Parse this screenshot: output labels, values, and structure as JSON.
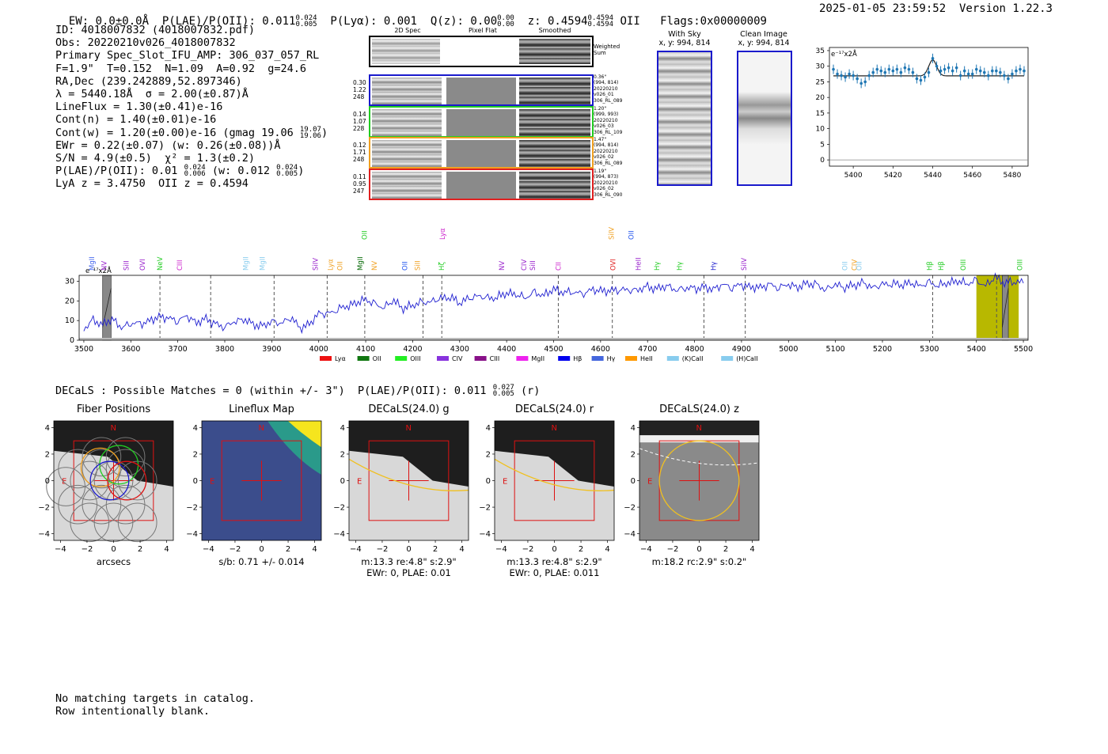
{
  "header": {
    "ew": "EW: 0.0±0.0Å",
    "plae_label": "P(LAE)/P(OII): 0.011",
    "plae_hi": "0.024",
    "plae_lo": "0.005",
    "plya": "P(Lyα): 0.001",
    "qz_label": "Q(z): 0.00",
    "qz_hi": "0.00",
    "qz_lo": "0.00",
    "z_label": "z: 0.4594",
    "z_hi": "0.4594",
    "z_lo": "0.4594",
    "z_tag": "OII",
    "flags": "Flags:0x00000009",
    "timestamp": "2025-01-05 23:59:52  Version 1.22.3"
  },
  "info": {
    "line1": "ID: 4018007832 (4018007832.pdf)",
    "line2": "Obs: 20220210v026_4018007832",
    "line3": "Primary Spec_Slot_IFU_AMP: 306_037_057_RL",
    "line4": "F=1.9\"  T=0.152  N=1.09  A=0.92  g=24.6",
    "line5": "RA,Dec (239.242889,52.897346)",
    "line6": "λ = 5440.18Å  σ = 2.00(±0.87)Å",
    "line7": "LineFlux = 1.30(±0.41)e-16",
    "line8": "Cont(n) = 1.40(±0.01)e-16",
    "line9a": "Cont(w) = 1.20(±0.00)e-16 (gmag 19.06",
    "line9_hi": "19.07",
    "line9_lo": "19.06",
    "line9b": ")",
    "line10": "EWr = 0.22(±0.07) (w: 0.26(±0.08))Å",
    "line11": "S/N = 4.9(±0.5)  χ² = 1.3(±0.2)",
    "line12a": "P(LAE)/P(OII): 0.01",
    "line12_hi": "0.024",
    "line12_lo": "0.006",
    "line12b": "(w: 0.012",
    "line12_hi2": "0.024",
    "line12_lo2": "0.005",
    "line12c": ")",
    "line13": "LyA z = 3.4750  OII z = 0.4594"
  },
  "cutouts": {
    "col_titles": [
      "2D Spec",
      "Pixel Flat",
      "Smoothed"
    ],
    "weighted_sum": "Weighted Sum",
    "rows": [
      {
        "color": "#1a1acc",
        "left": [
          "0.30",
          "1.22",
          "248"
        ],
        "right": [
          "0.36\"",
          "(994, 814)",
          "20220210",
          "v026_01",
          "306_RL_089"
        ]
      },
      {
        "color": "#22cc22",
        "left": [
          "0.14",
          "1.07",
          "228"
        ],
        "right": [
          "1.20\"",
          "(999, 993)",
          "20220210",
          "v026_03",
          "306_RL_109"
        ]
      },
      {
        "color": "#f0a020",
        "left": [
          "0.12",
          "1.71",
          "248"
        ],
        "right": [
          "1.47\"",
          "(994, 814)",
          "20220210",
          "v026_02",
          "306_RL_089"
        ]
      },
      {
        "color": "#e02020",
        "left": [
          "0.11",
          "0.95",
          "247"
        ],
        "right": [
          "1.19\"",
          "(994, 873)",
          "20220210",
          "v026_02",
          "306_RL_090"
        ]
      }
    ]
  },
  "sky": {
    "with_sky_title": "With Sky",
    "with_sky_sub": "x, y: 994, 814",
    "clean_title": "Clean Image",
    "clean_sub": "x, y: 994, 814"
  },
  "colors": {
    "spectrum": "#1f1fd0",
    "fit": "#222222",
    "points": "#1f77b4",
    "olive": "#b8b800"
  },
  "zoom_chart": {
    "unit_label": "e⁻¹⁷x2Å",
    "xticks": [
      5400,
      5420,
      5440,
      5460,
      5480
    ],
    "yticks": [
      0,
      5,
      10,
      15,
      20,
      25,
      30,
      35
    ]
  },
  "full_spectrum": {
    "unit_label": "e⁻¹⁷x2Å",
    "xticks": [
      3500,
      3600,
      3700,
      3800,
      3900,
      4000,
      4100,
      4200,
      4300,
      4400,
      4500,
      4600,
      4700,
      4800,
      4900,
      5000,
      5100,
      5200,
      5300,
      5400,
      5500
    ],
    "yticks": [
      0,
      10,
      20,
      30
    ],
    "lines_top": [
      {
        "label": "OII",
        "x": 4097,
        "color": "#22cc22"
      },
      {
        "label": "Lyα",
        "x": 4263,
        "color": "#cc22cc"
      },
      {
        "label": "SiIV",
        "x": 4623,
        "color": "#f0a020"
      },
      {
        "label": "OII",
        "x": 4665,
        "color": "#2255ee"
      }
    ],
    "lines_low": [
      {
        "label": "MgII",
        "x": 3517,
        "color": "#4466ee"
      },
      {
        "label": "NV",
        "x": 3543,
        "color": "#9922cc"
      },
      {
        "label": "SiII",
        "x": 3590,
        "color": "#9922cc"
      },
      {
        "label": "OVI",
        "x": 3625,
        "color": "#9922cc"
      },
      {
        "label": "NeV",
        "x": 3662,
        "color": "#22cc22"
      },
      {
        "label": "CIII",
        "x": 3704,
        "color": "#cc22cc"
      },
      {
        "label": "MgII",
        "x": 3845,
        "color": "#88ccee"
      },
      {
        "label": "MgII",
        "x": 3880,
        "color": "#88ccee"
      },
      {
        "label": "SiIV",
        "x": 3993,
        "color": "#9922cc"
      },
      {
        "label": "Lyα",
        "x": 4025,
        "color": "#f0a020"
      },
      {
        "label": "OII",
        "x": 4045,
        "color": "#f0a020"
      },
      {
        "label": "MgII",
        "x": 4088,
        "color": "#006600"
      },
      {
        "label": "NV",
        "x": 4118,
        "color": "#f0a020"
      },
      {
        "label": "OII",
        "x": 4183,
        "color": "#2255ee"
      },
      {
        "label": "SiII",
        "x": 4210,
        "color": "#f0a020"
      },
      {
        "label": "Hζ",
        "x": 4262,
        "color": "#22cc22"
      },
      {
        "label": "NV",
        "x": 4390,
        "color": "#9922cc"
      },
      {
        "label": "CIV",
        "x": 4437,
        "color": "#9922cc"
      },
      {
        "label": "SiII",
        "x": 4455,
        "color": "#9922cc"
      },
      {
        "label": "CII",
        "x": 4510,
        "color": "#cc22cc"
      },
      {
        "label": "OVI",
        "x": 4626,
        "color": "#e02020"
      },
      {
        "label": "HeII",
        "x": 4680,
        "color": "#9922cc"
      },
      {
        "label": "Hγ",
        "x": 4720,
        "color": "#22cc22"
      },
      {
        "label": "Hγ",
        "x": 4768,
        "color": "#22cc22"
      },
      {
        "label": "Hγ",
        "x": 4840,
        "color": "#1a1acc"
      },
      {
        "label": "SiIV",
        "x": 4905,
        "color": "#9922cc"
      },
      {
        "label": "OII",
        "x": 5120,
        "color": "#88ccee"
      },
      {
        "label": "CIV",
        "x": 5140,
        "color": "#f0a020"
      },
      {
        "label": "OII",
        "x": 5150,
        "color": "#88ccee"
      },
      {
        "label": "Hβ",
        "x": 5300,
        "color": "#22cc22"
      },
      {
        "label": "Hβ",
        "x": 5325,
        "color": "#22cc22"
      },
      {
        "label": "OIII",
        "x": 5372,
        "color": "#22cc22"
      },
      {
        "label": "OIII",
        "x": 5492,
        "color": "#22cc22"
      }
    ],
    "legend": [
      {
        "label": "Lyα",
        "color": "#ee1111"
      },
      {
        "label": "OII",
        "color": "#117711"
      },
      {
        "label": "OIII",
        "color": "#22ee22"
      },
      {
        "label": "CIV",
        "color": "#8833dd"
      },
      {
        "label": "CIII",
        "color": "#881188"
      },
      {
        "label": "MgII",
        "color": "#ee22ee"
      },
      {
        "label": "Hβ",
        "color": "#0000ee"
      },
      {
        "label": "Hγ",
        "color": "#4466dd"
      },
      {
        "label": "HeII",
        "color": "#ff9900"
      },
      {
        "label": "(K)CaII",
        "color": "#88ccee"
      },
      {
        "label": "(H)CaII",
        "color": "#88ccee"
      }
    ]
  },
  "decals": {
    "header_a": "DECaLS : Possible Matches = 0 (within +/- 3\")  P(LAE)/P(OII): 0.011",
    "header_hi": "0.027",
    "header_lo": "0.005",
    "header_b": "(r)",
    "panels": [
      {
        "title": "Fiber Positions",
        "cap1": "arcsecs",
        "cap2": ""
      },
      {
        "title": "Lineflux Map",
        "cap1": "s/b: 0.71 +/- 0.014",
        "cap2": ""
      },
      {
        "title": "DECaLS(24.0) g",
        "cap1": "m:13.3  re:4.8\"  s:2.9\"",
        "cap2": "EWr: 0, PLAE: 0.01"
      },
      {
        "title": "DECaLS(24.0) r",
        "cap1": "m:13.3  re:4.8\"  s:2.9\"",
        "cap2": "EWr: 0, PLAE: 0.011"
      },
      {
        "title": "DECaLS(24.0) z",
        "cap1": "m:18.2 rc:2.9\"  s:0.2\"",
        "cap2": ""
      }
    ],
    "axis_ticks": [
      -4,
      -2,
      0,
      2,
      4
    ],
    "compass_n": "N",
    "compass_e": "E"
  },
  "footer": {
    "line1": "No matching targets in catalog.",
    "line2": "Row intentionally blank."
  },
  "chart_data": [
    {
      "type": "scatter",
      "title": "",
      "xlabel": "",
      "ylabel": "e⁻¹⁷x2Å",
      "xlim": [
        5388,
        5488
      ],
      "ylim": [
        -2,
        36
      ],
      "series": [
        {
          "x": [
            5390,
            5392,
            5394,
            5396,
            5398,
            5400,
            5402,
            5404,
            5406,
            5408,
            5410,
            5412,
            5414,
            5416,
            5418,
            5420,
            5422,
            5424,
            5426,
            5428,
            5430,
            5432,
            5434,
            5436,
            5438,
            5440,
            5442,
            5444,
            5446,
            5448,
            5450,
            5452,
            5454,
            5456,
            5458,
            5460,
            5462,
            5464,
            5466,
            5468,
            5470,
            5472,
            5474,
            5476,
            5478,
            5480,
            5482,
            5484,
            5486
          ],
          "y": [
            29,
            27.5,
            27,
            26.5,
            27.5,
            27,
            26,
            24.5,
            25,
            27,
            28,
            29,
            28.5,
            28,
            29,
            28.5,
            29,
            28,
            29.5,
            29,
            28,
            26,
            25.5,
            26.5,
            28,
            32.5,
            30,
            28.5,
            29,
            29.5,
            28.5,
            29.5,
            27,
            28.5,
            27.5,
            27.5,
            29,
            28.5,
            28,
            27,
            28.5,
            28.5,
            28,
            27,
            26,
            27.5,
            28.5,
            29,
            28.5
          ]
        }
      ],
      "fit": {
        "continuum": 26.9,
        "peak_x": 5440,
        "peak_y": 32,
        "sigma": 2
      }
    },
    {
      "type": "line",
      "title": "",
      "xlabel": "",
      "ylabel": "e⁻¹⁷x2Å",
      "xlim": [
        3490,
        5510
      ],
      "ylim": [
        0,
        33
      ],
      "x": [
        3500,
        3520,
        3540,
        3560,
        3580,
        3600,
        3620,
        3640,
        3660,
        3680,
        3700,
        3720,
        3740,
        3760,
        3780,
        3800,
        3820,
        3840,
        3860,
        3880,
        3900,
        3920,
        3940,
        3960,
        3980,
        4000,
        4020,
        4040,
        4060,
        4080,
        4100,
        4120,
        4140,
        4160,
        4180,
        4200,
        4220,
        4240,
        4260,
        4280,
        4300,
        4320,
        4340,
        4360,
        4380,
        4400,
        4420,
        4440,
        4460,
        4480,
        4500,
        4520,
        4540,
        4560,
        4580,
        4600,
        4620,
        4640,
        4660,
        4680,
        4700,
        4720,
        4740,
        4760,
        4780,
        4800,
        4820,
        4840,
        4860,
        4880,
        4900,
        4920,
        4940,
        4960,
        4980,
        5000,
        5020,
        5040,
        5060,
        5080,
        5100,
        5120,
        5140,
        5160,
        5180,
        5200,
        5220,
        5240,
        5260,
        5280,
        5300,
        5320,
        5340,
        5360,
        5380,
        5400,
        5420,
        5440,
        5460,
        5480,
        5500
      ],
      "y": [
        6,
        10,
        8,
        11,
        6,
        9,
        8,
        10,
        12,
        11,
        10,
        12,
        9,
        11,
        8,
        7,
        9,
        11,
        8,
        7,
        10,
        8,
        12,
        6,
        8,
        14,
        13,
        16,
        17,
        19,
        21,
        18,
        17,
        20,
        16,
        18,
        19,
        20,
        21,
        22,
        19,
        21,
        23,
        21,
        22,
        24,
        23,
        22,
        24,
        23,
        26,
        24,
        25,
        23,
        26,
        25,
        25,
        26,
        25,
        26,
        27,
        26,
        28,
        25,
        27,
        26,
        27,
        26,
        28,
        27,
        28,
        27,
        27,
        28,
        27,
        28,
        27,
        29,
        28,
        26,
        28,
        27,
        28,
        29,
        27,
        28,
        29,
        28,
        29,
        28,
        29,
        28,
        29,
        30,
        29,
        30,
        28,
        32,
        29,
        30,
        29
      ],
      "sky_y": 1.2,
      "highlight_bands": [
        [
          5400,
          5490
        ]
      ],
      "hatched_bands": [
        [
          3540,
          3558
        ],
        [
          5455,
          5468
        ]
      ],
      "dashed_lines": [
        3662,
        3770,
        3905,
        4018,
        4098,
        4222,
        4262,
        4510,
        4625,
        4820,
        4908,
        5307,
        5443
      ]
    }
  ]
}
